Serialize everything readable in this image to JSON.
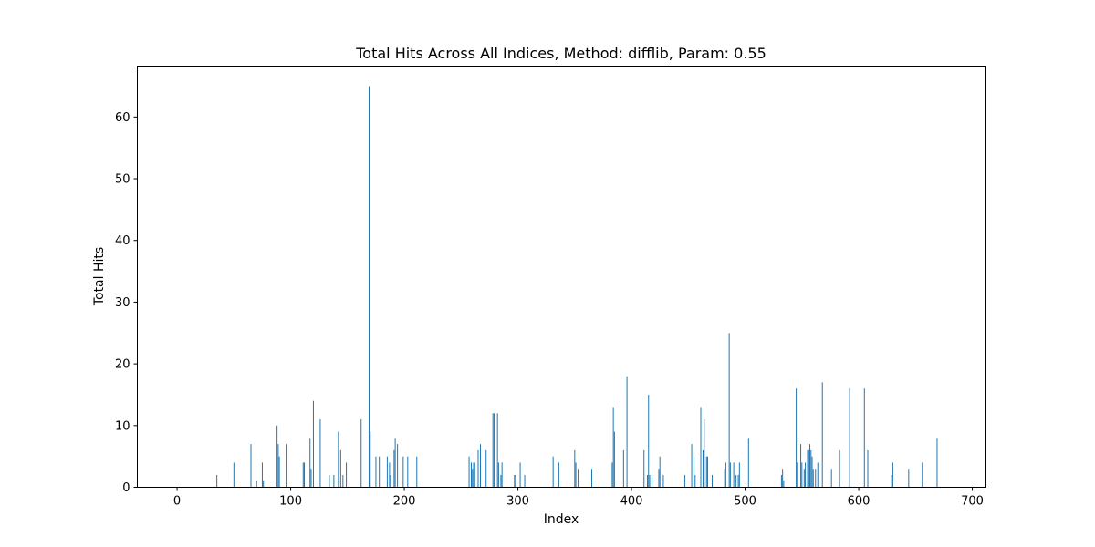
{
  "chart_data": {
    "type": "bar",
    "title": "Total Hits Across All Indices, Method: difflib, Param: 0.55",
    "xlabel": "Index",
    "ylabel": "Total Hits",
    "xlim": [
      -35,
      712
    ],
    "ylim": [
      0,
      68.25
    ],
    "xticks": [
      0,
      100,
      200,
      300,
      400,
      500,
      600,
      700
    ],
    "yticks": [
      0,
      10,
      20,
      30,
      40,
      50,
      60
    ],
    "grid": false,
    "bar_color": "#1f77b4",
    "x": [
      35,
      50,
      65,
      70,
      75,
      76,
      88,
      89,
      90,
      96,
      111,
      112,
      117,
      118,
      120,
      126,
      134,
      138,
      142,
      144,
      146,
      149,
      162,
      169,
      170,
      175,
      178,
      185,
      187,
      188,
      191,
      192,
      194,
      199,
      203,
      211,
      257,
      259,
      260,
      261,
      262,
      265,
      267,
      272,
      278,
      279,
      282,
      283,
      285,
      286,
      297,
      298,
      302,
      306,
      331,
      336,
      350,
      351,
      353,
      365,
      383,
      384,
      385,
      393,
      396,
      411,
      414,
      415,
      416,
      418,
      424,
      425,
      428,
      447,
      453,
      455,
      456,
      461,
      463,
      464,
      466,
      467,
      471,
      482,
      483,
      486,
      487,
      490,
      492,
      494,
      495,
      503,
      532,
      533,
      534,
      545,
      546,
      549,
      550,
      552,
      553,
      555,
      556,
      557,
      558,
      559,
      560,
      562,
      564,
      568,
      576,
      583,
      592,
      605,
      608,
      629,
      630,
      644,
      656,
      669
    ],
    "values": [
      2,
      4,
      7,
      1,
      4,
      1,
      10,
      7,
      5,
      7,
      4,
      4,
      8,
      3,
      14,
      11,
      2,
      2,
      9,
      6,
      2,
      4,
      11,
      65,
      9,
      5,
      5,
      5,
      4,
      2,
      6,
      8,
      7,
      5,
      5,
      5,
      5,
      4,
      3,
      4,
      4,
      6,
      7,
      6,
      12,
      12,
      12,
      4,
      2,
      4,
      2,
      2,
      4,
      2,
      5,
      4,
      6,
      4,
      3,
      3,
      4,
      13,
      9,
      6,
      18,
      6,
      2,
      15,
      2,
      2,
      3,
      5,
      2,
      2,
      7,
      5,
      2,
      13,
      6,
      11,
      5,
      5,
      2,
      3,
      4,
      25,
      4,
      4,
      2,
      2,
      4,
      8,
      2,
      3,
      1,
      16,
      4,
      7,
      4,
      3,
      4,
      6,
      6,
      7,
      6,
      5,
      3,
      3,
      4,
      17,
      3,
      6,
      16,
      16,
      6,
      2,
      4,
      3,
      4,
      8
    ]
  }
}
